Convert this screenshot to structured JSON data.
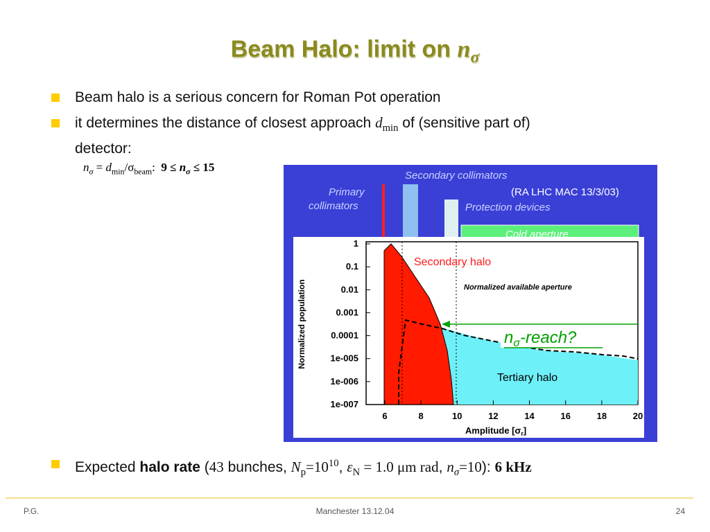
{
  "slide": {
    "title": "Beam Halo: limit on",
    "title_symbol": "nσ",
    "bullets": [
      {
        "text": "Beam halo is a serious concern for Roman Pot operation"
      },
      {
        "text_a": "it determines the distance of closest approach",
        "dmin": "d",
        "dmin_sub": "min",
        "text_b": "of (sensitive part of)",
        "text_c": "detector:"
      }
    ],
    "formula": {
      "lhs": "n",
      "lhs_sub": "σ",
      "eq": " = ",
      "d": "d",
      "d_sub": "min",
      "slash": "/σ",
      "beam_sub": "beam",
      "colon": ":",
      "bound": "9 ≤ ",
      "n": "n",
      "n_sub": "σ",
      "bound2": "≤ 15"
    },
    "expected": {
      "prefix": "Expected ",
      "bold": "halo rate",
      "open": " (",
      "bunches": "43",
      "bunches_label": " bunches, ",
      "Np": "N",
      "Np_sub": "p",
      "Np_val": "=10",
      "Np_exp": "10",
      "comma1": ", ",
      "eps": "ε",
      "eps_sub": "N",
      "eps_val": " = 1.0 μm rad",
      "comma2": ", ",
      "n": "n",
      "n_sub": "σ",
      "n_val": "=10",
      "close": "): ",
      "rate": "6 kHz"
    }
  },
  "figure": {
    "labels": {
      "secondary_collimators": "Secondary collimators",
      "primary_collimators_1": "Primary",
      "primary_collimators_2": "collimators",
      "ref": "(RA LHC MAC 13/3/03)",
      "protection_devices": "Protection devices",
      "cold_aperture": "Cold aperture",
      "secondary_halo": "Secondary halo",
      "normalized_aperture": "Normalized available aperture",
      "reach": "-reach?",
      "reach_n": "n",
      "reach_sub": "σ",
      "tertiary_halo": "Tertiary halo",
      "ylabel": "Normalized population",
      "xlabel": "Amplitude [σ",
      "xlabel_sub": "r",
      "xlabel_end": "]"
    },
    "yticks": [
      "1",
      "0.1",
      "0.01",
      "0.001",
      "0.0001",
      "1e-005",
      "1e-006",
      "1e-007"
    ],
    "xticks": [
      "6",
      "8",
      "10",
      "12",
      "14",
      "16",
      "18",
      "20"
    ],
    "colors": {
      "background": "#3a3fd6",
      "secondary_halo": "#ff1a00",
      "tertiary_halo": "#6ef0f8",
      "cold_aperture": "#5cf07a"
    }
  },
  "footer": {
    "left": "P.G.",
    "center": "Manchester 13.12.04",
    "right": "24"
  }
}
